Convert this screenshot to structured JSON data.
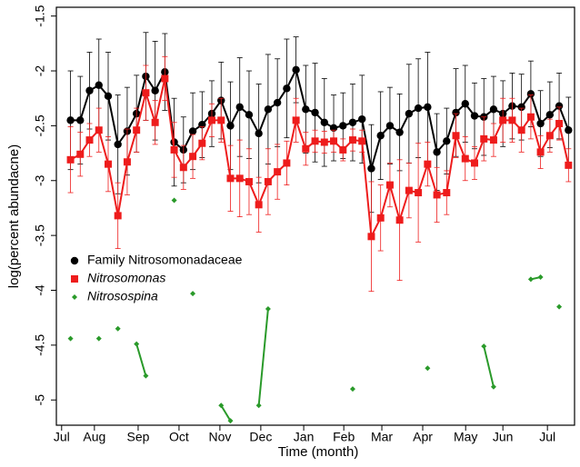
{
  "chart_data": {
    "type": "line",
    "ylabel": "log(percent abundacne)",
    "xlabel": "Time (month)",
    "x": [
      0.22,
      0.46,
      0.69,
      0.92,
      1.15,
      1.39,
      1.62,
      1.85,
      2.08,
      2.31,
      2.55,
      2.78,
      3.01,
      3.24,
      3.47,
      3.71,
      3.94,
      4.17,
      4.4,
      4.63,
      4.87,
      5.1,
      5.33,
      5.56,
      5.79,
      6.03,
      6.26,
      6.49,
      6.72,
      6.95,
      7.19,
      7.42,
      7.65,
      7.88,
      8.11,
      8.35,
      8.58,
      8.81,
      9.04,
      9.27,
      9.51,
      9.74,
      9.97,
      10.2,
      10.43,
      10.67,
      10.9,
      11.13,
      11.36,
      11.59,
      11.83,
      12.06,
      12.29,
      12.52
    ],
    "xlim": [
      -0.13,
      12.67
    ],
    "xticks": [
      {
        "value": 0,
        "label": "Jul"
      },
      {
        "value": 0.81,
        "label": "Aug"
      },
      {
        "value": 1.89,
        "label": "Sep"
      },
      {
        "value": 2.9,
        "label": "Oct"
      },
      {
        "value": 3.91,
        "label": "Nov"
      },
      {
        "value": 4.92,
        "label": "Dec"
      },
      {
        "value": 5.98,
        "label": "Jan"
      },
      {
        "value": 6.97,
        "label": "Feb"
      },
      {
        "value": 7.91,
        "label": "Mar"
      },
      {
        "value": 8.92,
        "label": "Apr"
      },
      {
        "value": 9.98,
        "label": "May"
      },
      {
        "value": 10.9,
        "label": "Jun"
      },
      {
        "value": 12.0,
        "label": "Jul"
      }
    ],
    "ylim": [
      -5.23,
      -1.42
    ],
    "yticks": [
      -1.5,
      -2.0,
      -2.5,
      -3.0,
      -3.5,
      -4.0,
      -4.5,
      -5.0
    ],
    "legend": "left",
    "series": [
      {
        "name": "Family Nitrosomonadaceae",
        "color": "#000000",
        "marker": "circle",
        "values": [
          -2.45,
          -2.45,
          -2.18,
          -2.13,
          -2.23,
          -2.67,
          -2.55,
          -2.39,
          -2.05,
          -2.18,
          -2.01,
          -2.65,
          -2.72,
          -2.55,
          -2.49,
          -2.39,
          -2.27,
          -2.5,
          -2.33,
          -2.4,
          -2.57,
          -2.35,
          -2.29,
          -2.16,
          -1.99,
          -2.35,
          -2.38,
          -2.47,
          -2.52,
          -2.5,
          -2.47,
          -2.44,
          -2.89,
          -2.59,
          -2.5,
          -2.56,
          -2.39,
          -2.34,
          -2.33,
          -2.74,
          -2.64,
          -2.38,
          -2.3,
          -2.41,
          -2.42,
          -2.35,
          -2.39,
          -2.32,
          -2.33,
          -2.21,
          -2.48,
          -2.4,
          -2.32,
          -2.54
        ],
        "errors": [
          0.45,
          0.4,
          0.35,
          0.42,
          0.4,
          0.45,
          0.4,
          0.35,
          0.4,
          0.45,
          0.35,
          0.4,
          0.3,
          0.35,
          0.3,
          0.3,
          0.35,
          0.4,
          0.45,
          0.4,
          0.45,
          0.5,
          0.4,
          0.45,
          0.3,
          0.4,
          0.45,
          0.4,
          0.3,
          0.3,
          0.35,
          0.4,
          0.4,
          0.4,
          0.35,
          0.35,
          0.45,
          0.45,
          0.5,
          0.35,
          0.3,
          0.4,
          0.35,
          0.3,
          0.35,
          0.3,
          0.3,
          0.3,
          0.3,
          0.3,
          0.3,
          0.3,
          0.3,
          0.3
        ]
      },
      {
        "name": "Nitrosomonas",
        "color": "#ee1c1c",
        "marker": "square",
        "values": [
          -2.81,
          -2.76,
          -2.63,
          -2.54,
          -2.85,
          -3.32,
          -2.83,
          -2.54,
          -2.2,
          -2.47,
          -2.07,
          -2.72,
          -2.88,
          -2.78,
          -2.66,
          -2.45,
          -2.45,
          -2.98,
          -2.98,
          -3.01,
          -3.22,
          -3.01,
          -2.92,
          -2.84,
          -2.45,
          -2.71,
          -2.64,
          -2.65,
          -2.64,
          -2.72,
          -2.63,
          -2.64,
          -3.51,
          -3.34,
          -3.04,
          -3.36,
          -3.09,
          -3.11,
          -2.85,
          -3.13,
          -3.11,
          -2.59,
          -2.8,
          -2.84,
          -2.62,
          -2.63,
          -2.45,
          -2.45,
          -2.54,
          -2.42,
          -2.74,
          -2.59,
          -2.48,
          -2.86
        ],
        "errors": [
          0.3,
          0.2,
          0.15,
          0.2,
          0.25,
          0.3,
          0.3,
          0.2,
          0.25,
          0.2,
          0.2,
          0.25,
          0.2,
          0.2,
          0.15,
          0.15,
          0.2,
          0.3,
          0.35,
          0.3,
          0.25,
          0.3,
          0.25,
          0.2,
          0.2,
          0.15,
          0.1,
          0.1,
          0.1,
          0.1,
          0.1,
          0.1,
          0.5,
          0.3,
          0.2,
          0.55,
          0.25,
          0.45,
          0.2,
          0.25,
          0.2,
          0.2,
          0.2,
          0.15,
          0.2,
          0.15,
          0.2,
          0.2,
          0.2,
          0.2,
          0.15,
          0.15,
          0.15,
          0.15
        ]
      },
      {
        "name": "Nitrosospina",
        "color": "#2a9a2a",
        "marker": "diamond",
        "values": [
          -4.44,
          null,
          null,
          -4.44,
          null,
          -4.35,
          null,
          -4.49,
          -4.78,
          null,
          null,
          -3.18,
          null,
          -4.03,
          null,
          null,
          -5.05,
          -5.19,
          null,
          null,
          -5.05,
          -4.17,
          null,
          null,
          null,
          null,
          null,
          null,
          null,
          null,
          -4.9,
          null,
          null,
          null,
          null,
          null,
          null,
          null,
          -4.71,
          null,
          null,
          null,
          null,
          null,
          -4.51,
          -4.88,
          null,
          null,
          null,
          -3.9,
          -3.88,
          null,
          -4.15,
          null
        ]
      }
    ]
  }
}
